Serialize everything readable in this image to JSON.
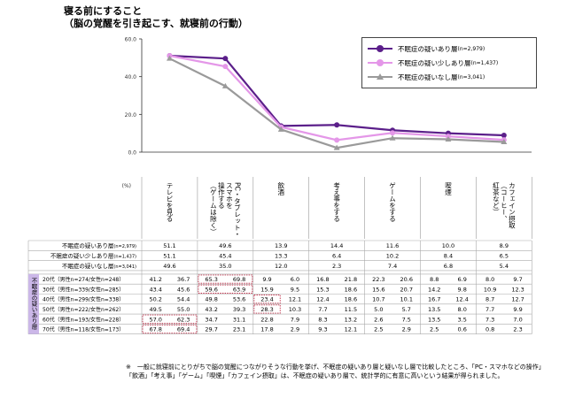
{
  "title": {
    "line1": "寝る前にすること",
    "line2": "（脳の覚醒を引き起こす、就寝前の行動）"
  },
  "axis": {
    "unit": "(%)",
    "ticks": [
      "60.0",
      "40.0",
      "20.0",
      "0.0"
    ]
  },
  "chart_data": {
    "type": "line",
    "categories": [
      "テレビを見る",
      "PC・タブレット・スマホを操作する（ゲームは除く）",
      "飲酒",
      "考え事をする",
      "ゲームをする",
      "喫煙",
      "カフェイン摂取（コーヒー、紅茶など）"
    ],
    "category_display": [
      "テレビを見る",
      "PC・タブレット・\nスマホを\n操作する\n（ゲームは除く）",
      "飲酒",
      "考え事をする",
      "ゲームをする",
      "喫煙",
      "カフェイン摂取\n（コーヒー、\n紅茶など）"
    ],
    "ylim": [
      0,
      60
    ],
    "yticks": [
      0,
      20,
      40,
      60
    ],
    "grid": false,
    "legend_position": "top-right",
    "series": [
      {
        "name": "不眠症の疑いあり層",
        "n": "(n=2,979)",
        "color": "#5b1f8a",
        "marker": "circle",
        "values": [
          51.1,
          49.6,
          13.9,
          14.4,
          11.6,
          10.0,
          8.9
        ]
      },
      {
        "name": "不眠症の疑い少しあり層",
        "n": "(n=1,437)",
        "color": "#e497e8",
        "marker": "circle",
        "values": [
          51.1,
          45.4,
          13.3,
          6.4,
          10.2,
          8.4,
          6.5
        ]
      },
      {
        "name": "不眠症の疑いなし層",
        "n": "(n=3,041)",
        "color": "#9a9a9a",
        "marker": "triangle",
        "values": [
          49.6,
          35.0,
          12.0,
          2.3,
          7.4,
          6.8,
          5.4
        ]
      }
    ]
  },
  "table": {
    "summary_rows": [
      {
        "label": "不眠症の疑いあり層",
        "n": "(n=2,979)",
        "values": [
          "51.1",
          "49.6",
          "13.9",
          "14.4",
          "11.6",
          "10.0",
          "8.9"
        ]
      },
      {
        "label": "不眠症の疑い少しあり層",
        "n": "(n=1,437)",
        "values": [
          "51.1",
          "45.4",
          "13.3",
          "6.4",
          "10.2",
          "8.4",
          "6.5"
        ]
      },
      {
        "label": "不眠症の疑いなし層",
        "n": "(n=3,041)",
        "values": [
          "49.6",
          "35.0",
          "12.0",
          "2.3",
          "7.4",
          "6.8",
          "5.4"
        ]
      }
    ],
    "side_label": "不眠症の疑いあり層",
    "age_rows": [
      {
        "label": "20代（男性n=274/女性n=248）",
        "values": [
          "41.2",
          "36.7",
          "65.3",
          "69.8",
          "9.9",
          "6.0",
          "16.8",
          "21.8",
          "22.3",
          "20.6",
          "8.8",
          "6.9",
          "8.0",
          "9.7"
        ]
      },
      {
        "label": "30代（男性n=339/女性n=285）",
        "values": [
          "43.4",
          "45.6",
          "59.6",
          "63.9",
          "15.9",
          "9.5",
          "15.3",
          "18.6",
          "15.6",
          "20.7",
          "14.2",
          "9.8",
          "10.9",
          "12.3"
        ]
      },
      {
        "label": "40代（男性n=299/女性n=338）",
        "values": [
          "50.2",
          "54.4",
          "49.8",
          "53.6",
          "23.4",
          "12.1",
          "12.4",
          "18.6",
          "10.7",
          "10.1",
          "16.7",
          "12.4",
          "8.7",
          "12.7"
        ]
      },
      {
        "label": "50代（男性n=222/女性n=262）",
        "values": [
          "49.5",
          "55.0",
          "43.2",
          "39.3",
          "28.3",
          "10.3",
          "7.7",
          "11.5",
          "5.0",
          "5.7",
          "13.5",
          "8.0",
          "7.7",
          "9.9"
        ]
      },
      {
        "label": "60代（男性n=193/女性n=228）",
        "values": [
          "57.0",
          "62.3",
          "34.7",
          "31.1",
          "22.8",
          "7.9",
          "8.3",
          "13.2",
          "2.6",
          "7.5",
          "13.5",
          "3.5",
          "7.3",
          "7.0"
        ]
      },
      {
        "label": "70代（男性n=118/女性n=173）",
        "values": [
          "67.8",
          "69.4",
          "29.7",
          "23.1",
          "17.8",
          "2.9",
          "9.3",
          "12.1",
          "2.5",
          "2.9",
          "2.5",
          "0.6",
          "0.8",
          "2.3"
        ]
      }
    ],
    "highlights": [
      {
        "row": 0,
        "cols": [
          2,
          3
        ]
      },
      {
        "row": 1,
        "cols": [
          2,
          3
        ]
      },
      {
        "row": 2,
        "cols": [
          4
        ]
      },
      {
        "row": 3,
        "cols": [
          4
        ]
      },
      {
        "row": 4,
        "cols": [
          0,
          1
        ]
      },
      {
        "row": 5,
        "cols": [
          0,
          1
        ]
      }
    ]
  },
  "note": {
    "line1": "※　一般に就寝前にとりがちで脳の覚醒につながりそうな行動を挙げ、不眠症の疑いあり層と疑いなし層で比較したところ、「PC・スマホなどの操作」",
    "line2": "「飲酒」「考え事」「ゲーム」「喫煙」「カフェイン摂取」は、不眠症の疑いあり層で、統計学的に有意に高いという結果が得られました。"
  }
}
